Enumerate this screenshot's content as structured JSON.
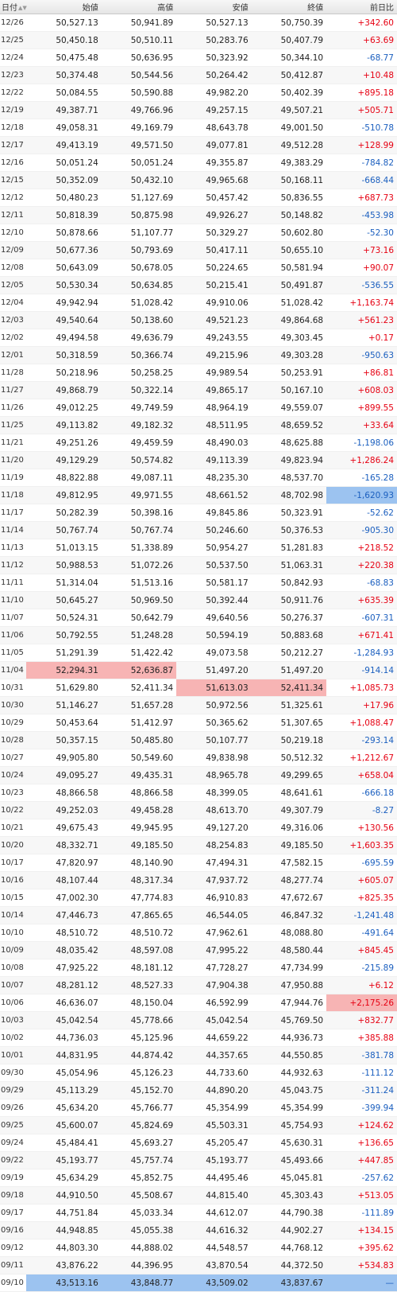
{
  "headers": {
    "date": "日付",
    "open": "始値",
    "high": "高値",
    "low": "安値",
    "close": "終値",
    "change": "前日比"
  },
  "icons": {
    "sort": "sort-toggle-icon"
  },
  "colors": {
    "up": "#e60012",
    "down": "#1b5fbf",
    "highlight_red": "#f7b4b4",
    "highlight_blue": "#9cc3f0"
  },
  "rows": [
    {
      "date": "12/26",
      "open": "50,527.13",
      "high": "50,941.89",
      "low": "50,527.13",
      "close": "50,750.39",
      "change": "+342.60"
    },
    {
      "date": "12/25",
      "open": "50,450.18",
      "high": "50,510.11",
      "low": "50,283.76",
      "close": "50,407.79",
      "change": "+63.69"
    },
    {
      "date": "12/24",
      "open": "50,475.48",
      "high": "50,636.95",
      "low": "50,323.92",
      "close": "50,344.10",
      "change": "-68.77"
    },
    {
      "date": "12/23",
      "open": "50,374.48",
      "high": "50,544.56",
      "low": "50,264.42",
      "close": "50,412.87",
      "change": "+10.48"
    },
    {
      "date": "12/22",
      "open": "50,084.55",
      "high": "50,590.88",
      "low": "49,982.20",
      "close": "50,402.39",
      "change": "+895.18"
    },
    {
      "date": "12/19",
      "open": "49,387.71",
      "high": "49,766.96",
      "low": "49,257.15",
      "close": "49,507.21",
      "change": "+505.71"
    },
    {
      "date": "12/18",
      "open": "49,058.31",
      "high": "49,169.79",
      "low": "48,643.78",
      "close": "49,001.50",
      "change": "-510.78"
    },
    {
      "date": "12/17",
      "open": "49,413.19",
      "high": "49,571.50",
      "low": "49,077.81",
      "close": "49,512.28",
      "change": "+128.99"
    },
    {
      "date": "12/16",
      "open": "50,051.24",
      "high": "50,051.24",
      "low": "49,355.87",
      "close": "49,383.29",
      "change": "-784.82"
    },
    {
      "date": "12/15",
      "open": "50,352.09",
      "high": "50,432.10",
      "low": "49,965.68",
      "close": "50,168.11",
      "change": "-668.44"
    },
    {
      "date": "12/12",
      "open": "50,480.23",
      "high": "51,127.69",
      "low": "50,457.42",
      "close": "50,836.55",
      "change": "+687.73"
    },
    {
      "date": "12/11",
      "open": "50,818.39",
      "high": "50,875.98",
      "low": "49,926.27",
      "close": "50,148.82",
      "change": "-453.98"
    },
    {
      "date": "12/10",
      "open": "50,878.66",
      "high": "51,107.77",
      "low": "50,329.27",
      "close": "50,602.80",
      "change": "-52.30"
    },
    {
      "date": "12/09",
      "open": "50,677.36",
      "high": "50,793.69",
      "low": "50,417.11",
      "close": "50,655.10",
      "change": "+73.16"
    },
    {
      "date": "12/08",
      "open": "50,643.09",
      "high": "50,678.05",
      "low": "50,224.65",
      "close": "50,581.94",
      "change": "+90.07"
    },
    {
      "date": "12/05",
      "open": "50,530.34",
      "high": "50,634.85",
      "low": "50,215.41",
      "close": "50,491.87",
      "change": "-536.55"
    },
    {
      "date": "12/04",
      "open": "49,942.94",
      "high": "51,028.42",
      "low": "49,910.06",
      "close": "51,028.42",
      "change": "+1,163.74"
    },
    {
      "date": "12/03",
      "open": "49,540.64",
      "high": "50,138.60",
      "low": "49,521.23",
      "close": "49,864.68",
      "change": "+561.23"
    },
    {
      "date": "12/02",
      "open": "49,494.58",
      "high": "49,636.79",
      "low": "49,243.55",
      "close": "49,303.45",
      "change": "+0.17"
    },
    {
      "date": "12/01",
      "open": "50,318.59",
      "high": "50,366.74",
      "low": "49,215.96",
      "close": "49,303.28",
      "change": "-950.63"
    },
    {
      "date": "11/28",
      "open": "50,218.96",
      "high": "50,258.25",
      "low": "49,989.54",
      "close": "50,253.91",
      "change": "+86.81"
    },
    {
      "date": "11/27",
      "open": "49,868.79",
      "high": "50,322.14",
      "low": "49,865.17",
      "close": "50,167.10",
      "change": "+608.03"
    },
    {
      "date": "11/26",
      "open": "49,012.25",
      "high": "49,749.59",
      "low": "48,964.19",
      "close": "49,559.07",
      "change": "+899.55"
    },
    {
      "date": "11/25",
      "open": "49,113.82",
      "high": "49,182.32",
      "low": "48,511.95",
      "close": "48,659.52",
      "change": "+33.64"
    },
    {
      "date": "11/21",
      "open": "49,251.26",
      "high": "49,459.59",
      "low": "48,490.03",
      "close": "48,625.88",
      "change": "-1,198.06"
    },
    {
      "date": "11/20",
      "open": "49,129.29",
      "high": "50,574.82",
      "low": "49,113.39",
      "close": "49,823.94",
      "change": "+1,286.24"
    },
    {
      "date": "11/19",
      "open": "48,822.88",
      "high": "49,087.11",
      "low": "48,235.30",
      "close": "48,537.70",
      "change": "-165.28"
    },
    {
      "date": "11/18",
      "open": "49,812.95",
      "high": "49,971.55",
      "low": "48,661.52",
      "close": "48,702.98",
      "change": "-1,620.93",
      "hl_change": "blue"
    },
    {
      "date": "11/17",
      "open": "50,282.39",
      "high": "50,398.16",
      "low": "49,845.86",
      "close": "50,323.91",
      "change": "-52.62"
    },
    {
      "date": "11/14",
      "open": "50,767.74",
      "high": "50,767.74",
      "low": "50,246.60",
      "close": "50,376.53",
      "change": "-905.30"
    },
    {
      "date": "11/13",
      "open": "51,013.15",
      "high": "51,338.89",
      "low": "50,954.27",
      "close": "51,281.83",
      "change": "+218.52"
    },
    {
      "date": "11/12",
      "open": "50,988.53",
      "high": "51,072.26",
      "low": "50,537.50",
      "close": "51,063.31",
      "change": "+220.38"
    },
    {
      "date": "11/11",
      "open": "51,314.04",
      "high": "51,513.16",
      "low": "50,581.17",
      "close": "50,842.93",
      "change": "-68.83"
    },
    {
      "date": "11/10",
      "open": "50,645.27",
      "high": "50,969.50",
      "low": "50,392.44",
      "close": "50,911.76",
      "change": "+635.39"
    },
    {
      "date": "11/07",
      "open": "50,524.31",
      "high": "50,642.79",
      "low": "49,640.56",
      "close": "50,276.37",
      "change": "-607.31"
    },
    {
      "date": "11/06",
      "open": "50,792.55",
      "high": "51,248.28",
      "low": "50,594.19",
      "close": "50,883.68",
      "change": "+671.41"
    },
    {
      "date": "11/05",
      "open": "51,291.39",
      "high": "51,422.42",
      "low": "49,073.58",
      "close": "50,212.27",
      "change": "-1,284.93"
    },
    {
      "date": "11/04",
      "open": "52,294.31",
      "high": "52,636.87",
      "low": "51,497.20",
      "close": "51,497.20",
      "change": "-914.14",
      "hl_open": "red",
      "hl_high": "red"
    },
    {
      "date": "10/31",
      "open": "51,629.80",
      "high": "52,411.34",
      "low": "51,613.03",
      "close": "52,411.34",
      "change": "+1,085.73",
      "hl_low": "red",
      "hl_close": "red"
    },
    {
      "date": "10/30",
      "open": "51,146.27",
      "high": "51,657.28",
      "low": "50,972.56",
      "close": "51,325.61",
      "change": "+17.96"
    },
    {
      "date": "10/29",
      "open": "50,453.64",
      "high": "51,412.97",
      "low": "50,365.62",
      "close": "51,307.65",
      "change": "+1,088.47"
    },
    {
      "date": "10/28",
      "open": "50,357.15",
      "high": "50,485.80",
      "low": "50,107.77",
      "close": "50,219.18",
      "change": "-293.14"
    },
    {
      "date": "10/27",
      "open": "49,905.80",
      "high": "50,549.60",
      "low": "49,838.98",
      "close": "50,512.32",
      "change": "+1,212.67"
    },
    {
      "date": "10/24",
      "open": "49,095.27",
      "high": "49,435.31",
      "low": "48,965.78",
      "close": "49,299.65",
      "change": "+658.04"
    },
    {
      "date": "10/23",
      "open": "48,866.58",
      "high": "48,866.58",
      "low": "48,399.05",
      "close": "48,641.61",
      "change": "-666.18"
    },
    {
      "date": "10/22",
      "open": "49,252.03",
      "high": "49,458.28",
      "low": "48,613.70",
      "close": "49,307.79",
      "change": "-8.27"
    },
    {
      "date": "10/21",
      "open": "49,675.43",
      "high": "49,945.95",
      "low": "49,127.20",
      "close": "49,316.06",
      "change": "+130.56"
    },
    {
      "date": "10/20",
      "open": "48,332.71",
      "high": "49,185.50",
      "low": "48,254.83",
      "close": "49,185.50",
      "change": "+1,603.35"
    },
    {
      "date": "10/17",
      "open": "47,820.97",
      "high": "48,140.90",
      "low": "47,494.31",
      "close": "47,582.15",
      "change": "-695.59"
    },
    {
      "date": "10/16",
      "open": "48,107.44",
      "high": "48,317.34",
      "low": "47,937.72",
      "close": "48,277.74",
      "change": "+605.07"
    },
    {
      "date": "10/15",
      "open": "47,002.30",
      "high": "47,774.83",
      "low": "46,910.83",
      "close": "47,672.67",
      "change": "+825.35"
    },
    {
      "date": "10/14",
      "open": "47,446.73",
      "high": "47,865.65",
      "low": "46,544.05",
      "close": "46,847.32",
      "change": "-1,241.48"
    },
    {
      "date": "10/10",
      "open": "48,510.72",
      "high": "48,510.72",
      "low": "47,962.61",
      "close": "48,088.80",
      "change": "-491.64"
    },
    {
      "date": "10/09",
      "open": "48,035.42",
      "high": "48,597.08",
      "low": "47,995.22",
      "close": "48,580.44",
      "change": "+845.45"
    },
    {
      "date": "10/08",
      "open": "47,925.22",
      "high": "48,181.12",
      "low": "47,728.27",
      "close": "47,734.99",
      "change": "-215.89"
    },
    {
      "date": "10/07",
      "open": "48,281.12",
      "high": "48,527.33",
      "low": "47,904.38",
      "close": "47,950.88",
      "change": "+6.12"
    },
    {
      "date": "10/06",
      "open": "46,636.07",
      "high": "48,150.04",
      "low": "46,592.99",
      "close": "47,944.76",
      "change": "+2,175.26",
      "hl_change": "red"
    },
    {
      "date": "10/03",
      "open": "45,042.54",
      "high": "45,778.66",
      "low": "45,042.54",
      "close": "45,769.50",
      "change": "+832.77"
    },
    {
      "date": "10/02",
      "open": "44,736.03",
      "high": "45,125.96",
      "low": "44,659.22",
      "close": "44,936.73",
      "change": "+385.88"
    },
    {
      "date": "10/01",
      "open": "44,831.95",
      "high": "44,874.42",
      "low": "44,357.65",
      "close": "44,550.85",
      "change": "-381.78"
    },
    {
      "date": "09/30",
      "open": "45,054.96",
      "high": "45,126.23",
      "low": "44,733.60",
      "close": "44,932.63",
      "change": "-111.12"
    },
    {
      "date": "09/29",
      "open": "45,113.29",
      "high": "45,152.70",
      "low": "44,890.20",
      "close": "45,043.75",
      "change": "-311.24"
    },
    {
      "date": "09/26",
      "open": "45,634.20",
      "high": "45,766.77",
      "low": "45,354.99",
      "close": "45,354.99",
      "change": "-399.94"
    },
    {
      "date": "09/25",
      "open": "45,600.07",
      "high": "45,824.69",
      "low": "45,503.31",
      "close": "45,754.93",
      "change": "+124.62"
    },
    {
      "date": "09/24",
      "open": "45,484.41",
      "high": "45,693.27",
      "low": "45,205.47",
      "close": "45,630.31",
      "change": "+136.65"
    },
    {
      "date": "09/22",
      "open": "45,193.77",
      "high": "45,757.74",
      "low": "45,193.77",
      "close": "45,493.66",
      "change": "+447.85"
    },
    {
      "date": "09/19",
      "open": "45,634.29",
      "high": "45,852.75",
      "low": "44,495.46",
      "close": "45,045.81",
      "change": "-257.62"
    },
    {
      "date": "09/18",
      "open": "44,910.50",
      "high": "45,508.67",
      "low": "44,815.40",
      "close": "45,303.43",
      "change": "+513.05"
    },
    {
      "date": "09/17",
      "open": "44,751.84",
      "high": "45,033.34",
      "low": "44,612.07",
      "close": "44,790.38",
      "change": "-111.89"
    },
    {
      "date": "09/16",
      "open": "44,948.85",
      "high": "45,055.38",
      "low": "44,616.32",
      "close": "44,902.27",
      "change": "+134.15"
    },
    {
      "date": "09/12",
      "open": "44,803.30",
      "high": "44,888.02",
      "low": "44,548.57",
      "close": "44,768.12",
      "change": "+395.62"
    },
    {
      "date": "09/11",
      "open": "43,876.22",
      "high": "44,396.95",
      "low": "43,870.54",
      "close": "44,372.50",
      "change": "+534.83"
    },
    {
      "date": "09/10",
      "open": "43,513.16",
      "high": "43,848.77",
      "low": "43,509.02",
      "close": "43,837.67",
      "change": "—",
      "hl_open": "blue",
      "hl_high": "blue",
      "hl_low": "blue",
      "hl_close": "blue",
      "hl_change": "blue"
    }
  ]
}
